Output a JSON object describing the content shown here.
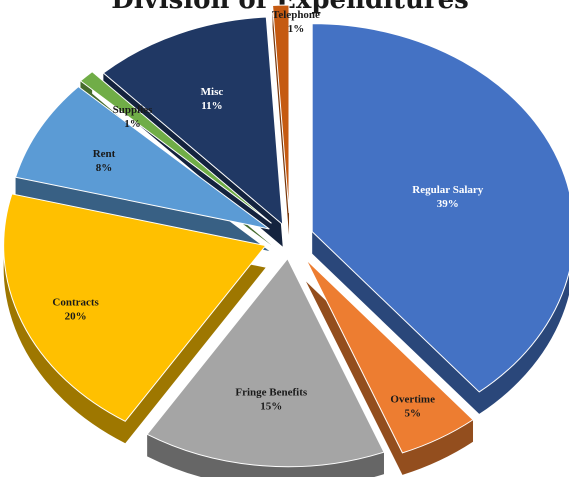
{
  "chart_data": {
    "type": "pie",
    "title": "Division of Expenditures",
    "categories": [
      "Regular Salary",
      "Overtime",
      "Fringe Benefits",
      "Contracts",
      "Rent",
      "Supplies",
      "Misc",
      "Telephone"
    ],
    "values": [
      39,
      5,
      15,
      20,
      8,
      1,
      11,
      1
    ],
    "labels": [
      "39%",
      "5%",
      "15%",
      "20%",
      "8%",
      "1%",
      "11%",
      "1%"
    ],
    "colors": [
      "#4472c4",
      "#ed7d31",
      "#a5a5a5",
      "#ffc000",
      "#5b9bd5",
      "#70ad47",
      "#203864",
      "#c55a11"
    ],
    "label_color": [
      "light",
      "dark",
      "dark",
      "dark",
      "dark",
      "dark",
      "light",
      "dark"
    ],
    "legend": "none",
    "style": "3d-exploded"
  }
}
